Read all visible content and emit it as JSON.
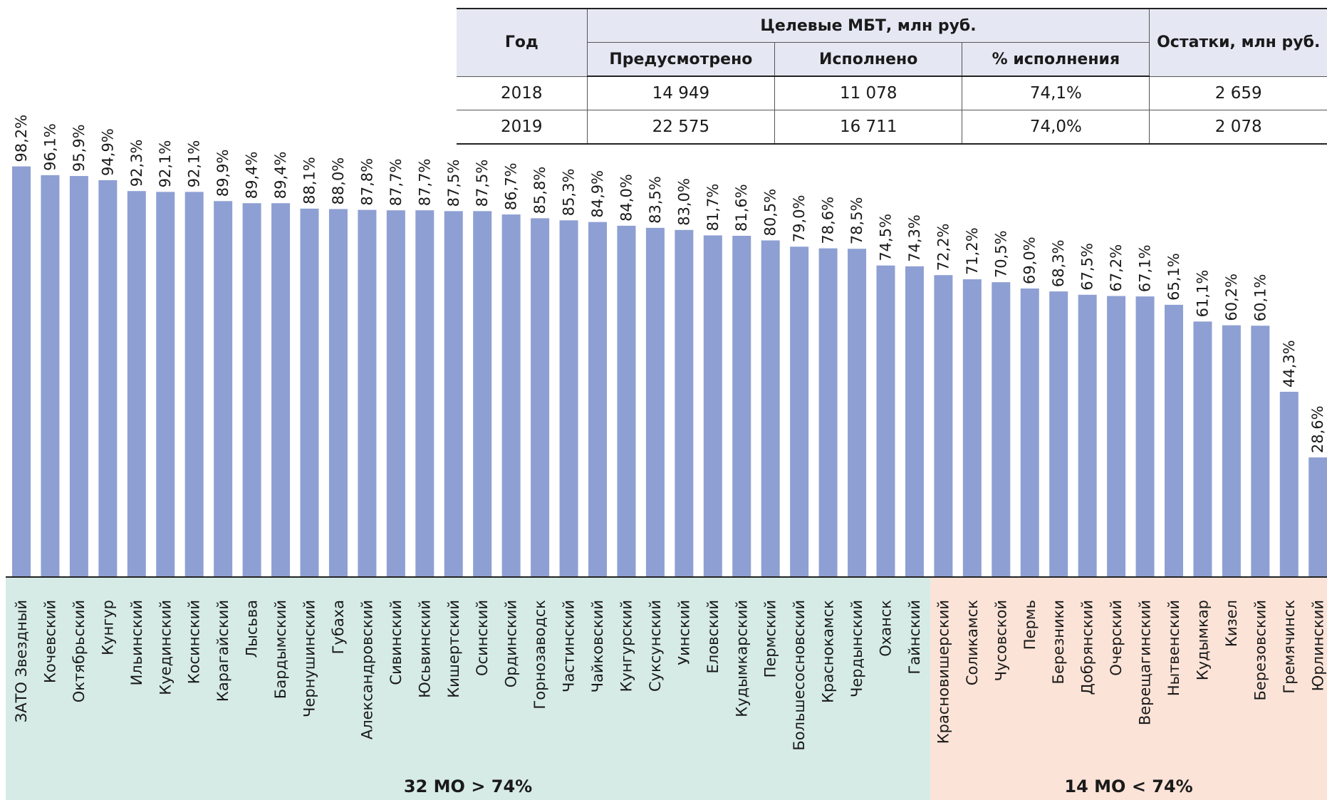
{
  "table": {
    "headers": {
      "year": "Год",
      "group": "Целевые МБТ, млн руб.",
      "planned": "Предусмотрено",
      "executed": "Исполнено",
      "percent": "% исполнения",
      "remainder": "Остатки, млн руб."
    },
    "rows": [
      [
        "2018",
        "14 949",
        "11 078",
        "74,1%",
        "2 659"
      ],
      [
        "2019",
        "22 575",
        "16 711",
        "74,0%",
        "2 078"
      ]
    ]
  },
  "chart_data": {
    "type": "bar",
    "categories": [
      "ЗАТО Звездный",
      "Кочевский",
      "Октябрьский",
      "Кунгур",
      "Ильинский",
      "Куединский",
      "Косинский",
      "Карагайский",
      "Лысьва",
      "Бардымский",
      "Чернушинский",
      "Губаха",
      "Александровский",
      "Сивинский",
      "Юсьвинский",
      "Кишертский",
      "Осинский",
      "Ординский",
      "Горнозаводск",
      "Частинский",
      "Чайковский",
      "Кунгурский",
      "Суксунский",
      "Уинский",
      "Еловский",
      "Кудымкарский",
      "Пермский",
      "Большесосновский",
      "Краснокамск",
      "Чердынский",
      "Оханск",
      "Гайнский",
      "Красновишерский",
      "Соликамск",
      "Чусовской",
      "Пермь",
      "Березники",
      "Добрянский",
      "Очерский",
      "Верещагинский",
      "Нытвенский",
      "Кудымкар",
      "Кизел",
      "Березовский",
      "Гремячинск",
      "Юрлинский"
    ],
    "values": [
      98.2,
      96.1,
      95.9,
      94.9,
      92.3,
      92.1,
      92.1,
      89.9,
      89.4,
      89.4,
      88.1,
      88.0,
      87.8,
      87.7,
      87.7,
      87.5,
      87.5,
      86.7,
      85.8,
      85.3,
      84.9,
      84.0,
      83.5,
      83.0,
      81.7,
      81.6,
      80.5,
      79.0,
      78.6,
      78.5,
      74.5,
      74.3,
      72.2,
      71.2,
      70.5,
      69.0,
      68.3,
      67.5,
      67.2,
      67.1,
      65.1,
      61.1,
      60.2,
      60.1,
      44.3,
      28.6
    ],
    "labels": [
      "98,2%",
      "96,1%",
      "95,9%",
      "94,9%",
      "92,3%",
      "92,1%",
      "92,1%",
      "89,9%",
      "89,4%",
      "89,4%",
      "88,1%",
      "88,0%",
      "87,8%",
      "87,7%",
      "87,7%",
      "87,5%",
      "87,5%",
      "86,7%",
      "85,8%",
      "85,3%",
      "84,9%",
      "84,0%",
      "83,5%",
      "83,0%",
      "81,7%",
      "81,6%",
      "80,5%",
      "79,0%",
      "78,6%",
      "78,5%",
      "74,5%",
      "74,3%",
      "72,2%",
      "71,2%",
      "70,5%",
      "69,0%",
      "68,3%",
      "67,5%",
      "67,2%",
      "67,1%",
      "65,1%",
      "61,1%",
      "60,2%",
      "60,1%",
      "44,3%",
      "28,6%"
    ],
    "ylim": [
      0,
      100
    ],
    "grid": false,
    "bar_color": "#8e9fd3",
    "groups": [
      {
        "label": "32 МО > 74%",
        "count": 32,
        "color": "#d6ebe6"
      },
      {
        "label": "14 МО < 74%",
        "count": 14,
        "color": "#fbe3d8"
      }
    ]
  }
}
